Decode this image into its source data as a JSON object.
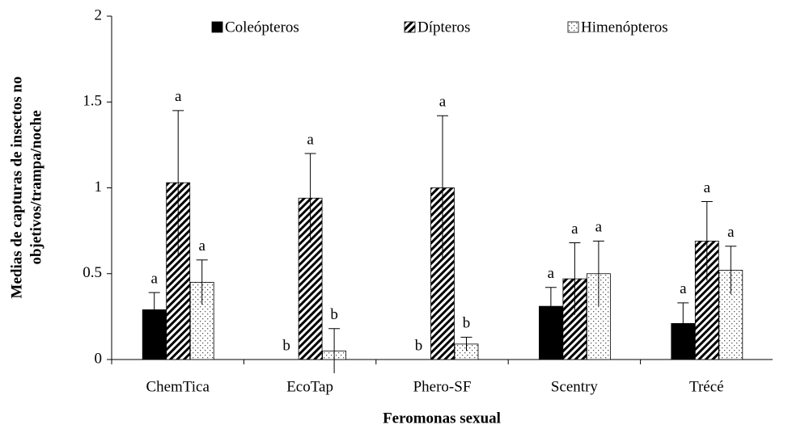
{
  "chart_data": {
    "type": "bar",
    "ylabel": [
      "Medias de capturas de insectos no",
      "objetivos/trampa/noche"
    ],
    "xlabel": "Feromonas sexual",
    "categories": [
      "ChemTica",
      "EcoTap",
      "Phero-SF",
      "Scentry",
      "Trécé"
    ],
    "series": [
      {
        "name": "Coleópteros",
        "color": "#000000",
        "pattern": "solid",
        "values": [
          0.29,
          0,
          0,
          0.31,
          0.21
        ],
        "errors": [
          0.1,
          0,
          0,
          0.11,
          0.12
        ],
        "letters": [
          "a",
          "b",
          "b",
          "a",
          "a"
        ]
      },
      {
        "name": "Dípteros",
        "color": "#000000",
        "pattern": "diagonal",
        "values": [
          1.03,
          0.94,
          1.0,
          0.47,
          0.69
        ],
        "errors": [
          0.42,
          0.26,
          0.42,
          0.21,
          0.23
        ],
        "letters": [
          "a",
          "a",
          "a",
          "a",
          "a"
        ]
      },
      {
        "name": "Himenópteros",
        "color": "#000000",
        "pattern": "dots",
        "values": [
          0.45,
          0.05,
          0.09,
          0.5,
          0.52
        ],
        "errors": [
          0.13,
          0.13,
          0.04,
          0.19,
          0.14
        ],
        "letters": [
          "a",
          "b",
          "b",
          "a",
          "a"
        ]
      }
    ],
    "ylim": [
      0,
      2
    ],
    "yticks": [
      0,
      0.5,
      1,
      1.5,
      2
    ],
    "legend": "top"
  }
}
